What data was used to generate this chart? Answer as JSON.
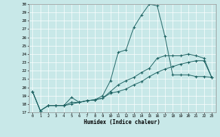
{
  "xlabel": "Humidex (Indice chaleur)",
  "bg_color": "#c8e8e8",
  "grid_color": "#b0d0d0",
  "line_color": "#1a6060",
  "xlim": [
    -0.5,
    23.5
  ],
  "ylim": [
    17,
    30
  ],
  "yticks": [
    17,
    18,
    19,
    20,
    21,
    22,
    23,
    24,
    25,
    26,
    27,
    28,
    29,
    30
  ],
  "xticks": [
    0,
    1,
    2,
    3,
    4,
    5,
    6,
    7,
    8,
    9,
    10,
    11,
    12,
    13,
    14,
    15,
    16,
    17,
    18,
    19,
    20,
    21,
    22,
    23
  ],
  "line1_x": [
    0,
    1,
    2,
    3,
    4,
    5,
    6,
    7,
    8,
    9,
    10,
    11,
    12,
    13,
    14,
    15,
    16,
    17,
    18,
    19,
    20,
    21,
    22,
    23
  ],
  "line1_y": [
    19.5,
    17.2,
    17.8,
    17.8,
    17.8,
    18.8,
    18.2,
    18.4,
    18.5,
    19.0,
    20.8,
    24.2,
    24.5,
    27.2,
    28.7,
    30.0,
    29.8,
    26.1,
    21.5,
    21.5,
    21.5,
    21.3,
    21.3,
    21.2
  ],
  "line2_x": [
    0,
    1,
    2,
    3,
    4,
    5,
    6,
    7,
    8,
    9,
    10,
    11,
    12,
    13,
    14,
    15,
    16,
    17,
    18,
    19,
    20,
    21,
    22,
    23
  ],
  "line2_y": [
    19.5,
    17.2,
    17.8,
    17.8,
    17.8,
    18.2,
    18.2,
    18.4,
    18.5,
    18.7,
    19.5,
    20.3,
    20.8,
    21.2,
    21.8,
    22.3,
    23.5,
    23.8,
    23.8,
    23.8,
    24.0,
    23.8,
    23.5,
    21.2
  ],
  "line3_x": [
    0,
    1,
    2,
    3,
    4,
    5,
    6,
    7,
    8,
    9,
    10,
    11,
    12,
    13,
    14,
    15,
    16,
    17,
    18,
    19,
    20,
    21,
    22,
    23
  ],
  "line3_y": [
    19.5,
    17.2,
    17.8,
    17.8,
    17.8,
    18.0,
    18.2,
    18.4,
    18.5,
    18.7,
    19.3,
    19.5,
    19.8,
    20.3,
    20.7,
    21.3,
    21.8,
    22.2,
    22.5,
    22.8,
    23.0,
    23.2,
    23.2,
    21.2
  ]
}
